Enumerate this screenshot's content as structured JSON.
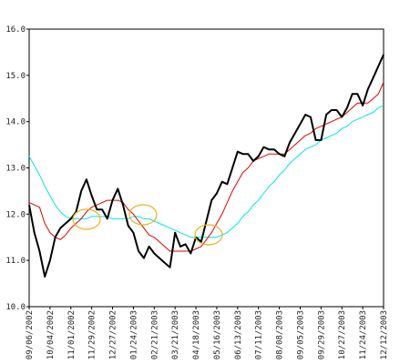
{
  "chart_data": {
    "type": "line",
    "categories": [
      "09/06/2002",
      null,
      null,
      null,
      "10/04/2002",
      null,
      null,
      null,
      "11/01/2002",
      null,
      null,
      null,
      "11/29/2002",
      null,
      null,
      null,
      "12/27/2002",
      null,
      null,
      null,
      "01/24/2003",
      null,
      null,
      null,
      "02/21/2003",
      null,
      null,
      null,
      "03/21/2003",
      null,
      null,
      null,
      "04/18/2003",
      null,
      null,
      null,
      "05/16/2003",
      null,
      null,
      null,
      "06/13/2003",
      null,
      null,
      null,
      "07/11/2003",
      null,
      null,
      null,
      "08/08/2003",
      null,
      null,
      null,
      "09/05/2003",
      null,
      null,
      null,
      "09/29/2003",
      null,
      null,
      null,
      "10/27/2003",
      null,
      null,
      null,
      "11/24/2003",
      null,
      null,
      null,
      "12/12/2003"
    ],
    "series": [
      {
        "color": "#00e5ee",
        "width": 1,
        "values": [
          13.25,
          13.05,
          12.85,
          12.6,
          12.4,
          12.2,
          12.05,
          11.95,
          11.9,
          11.9,
          11.9,
          11.9,
          11.95,
          11.95,
          11.95,
          11.95,
          11.9,
          11.9,
          11.9,
          11.9,
          11.95,
          11.95,
          11.9,
          11.9,
          11.85,
          11.8,
          11.75,
          11.7,
          11.65,
          11.6,
          11.55,
          11.5,
          11.5,
          11.5,
          11.5,
          11.5,
          11.5,
          11.55,
          11.6,
          11.7,
          11.8,
          11.95,
          12.05,
          12.2,
          12.3,
          12.45,
          12.6,
          12.7,
          12.85,
          12.95,
          13.1,
          13.2,
          13.3,
          13.4,
          13.45,
          13.5,
          13.6,
          13.65,
          13.7,
          13.75,
          13.85,
          13.9,
          14.0,
          14.05,
          14.1,
          14.15,
          14.2,
          14.3,
          14.35
        ]
      },
      {
        "color": "#e00000",
        "width": 1,
        "values": [
          12.25,
          12.2,
          12.15,
          11.8,
          11.6,
          11.5,
          11.45,
          11.55,
          11.7,
          11.8,
          11.9,
          12.05,
          12.15,
          12.2,
          12.25,
          12.3,
          12.3,
          12.3,
          12.25,
          12.1,
          12.0,
          11.85,
          11.7,
          11.55,
          11.5,
          11.4,
          11.3,
          11.2,
          11.2,
          11.2,
          11.2,
          11.2,
          11.25,
          11.3,
          11.45,
          11.6,
          11.8,
          12.0,
          12.25,
          12.5,
          12.7,
          12.9,
          13.0,
          13.15,
          13.2,
          13.25,
          13.3,
          13.3,
          13.3,
          13.3,
          13.4,
          13.5,
          13.6,
          13.7,
          13.75,
          13.85,
          13.9,
          13.95,
          14.0,
          14.05,
          14.1,
          14.2,
          14.3,
          14.4,
          14.4,
          14.4,
          14.5,
          14.6,
          14.85
        ]
      },
      {
        "color": "#000000",
        "width": 2,
        "values": [
          12.2,
          11.6,
          11.2,
          10.65,
          11.0,
          11.5,
          11.7,
          11.8,
          11.9,
          12.05,
          12.5,
          12.75,
          12.4,
          12.1,
          12.1,
          11.9,
          12.3,
          12.55,
          12.2,
          11.75,
          11.6,
          11.2,
          11.05,
          11.3,
          11.15,
          11.05,
          10.95,
          10.85,
          11.6,
          11.3,
          11.35,
          11.15,
          11.5,
          11.4,
          11.85,
          12.3,
          12.45,
          12.7,
          12.65,
          13.0,
          13.35,
          13.3,
          13.3,
          13.15,
          13.25,
          13.45,
          13.4,
          13.4,
          13.3,
          13.25,
          13.55,
          13.75,
          13.95,
          14.15,
          14.1,
          13.6,
          13.6,
          14.15,
          14.25,
          14.25,
          14.1,
          14.3,
          14.6,
          14.6,
          14.35,
          14.7,
          14.95,
          15.2,
          15.45
        ]
      }
    ],
    "ylim": [
      10,
      16
    ],
    "yticks": [
      {
        "value": 10,
        "label": "10.0"
      },
      {
        "value": 11,
        "label": "11.0"
      },
      {
        "value": 12,
        "label": "12.0"
      },
      {
        "value": 13,
        "label": "13.0"
      },
      {
        "value": 14,
        "label": "14.0"
      },
      {
        "value": 15,
        "label": "15.0"
      },
      {
        "value": 16,
        "label": "16.0"
      }
    ]
  }
}
